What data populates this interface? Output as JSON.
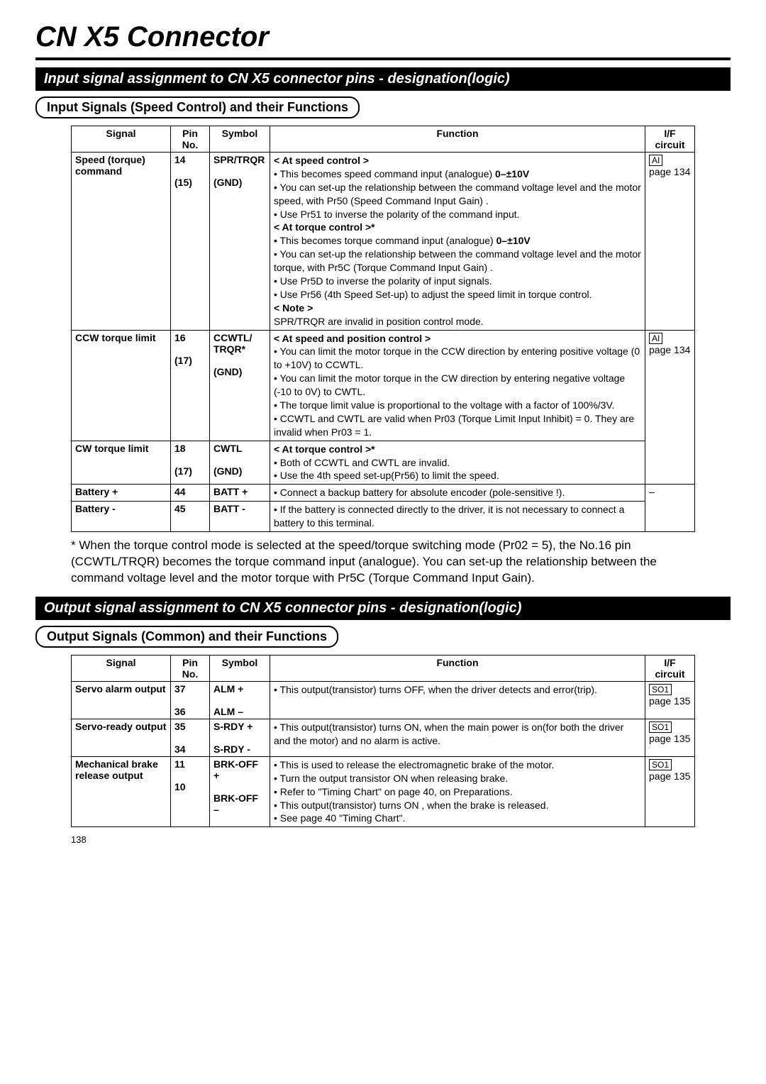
{
  "title": "CN X5 Connector",
  "section1": {
    "bar": "Input signal assignment to CN X5 connector pins - designation(logic)",
    "sub": "Input Signals (Speed Control) and their Functions",
    "headers": {
      "signal": "Signal",
      "pin": "Pin No.",
      "symbol": "Symbol",
      "func": "Function",
      "if": "I/F circuit"
    },
    "rows": [
      {
        "signal": "Speed (torque) command",
        "pins": [
          "14",
          "(15)"
        ],
        "symbols": [
          "SPR/TRQR",
          "(GND)"
        ],
        "func_html": "<b>&lt; At speed control &gt;</b><br>• This becomes speed command input (analogue) <b>0–±10V</b><br>• You can set-up the relationship between the command voltage level and the motor speed, with Pr50 (Speed Command Input Gain) .<br>• Use Pr51 to inverse the polarity of the command input.<br><b>&lt; At torque control &gt;*</b><br>• This becomes torque command input (analogue) <b>0–±10V</b><br>• You can set-up the relationship between the command voltage level and the motor torque, with Pr5C (Torque Command Input Gain) .<br>• Use Pr5D to inverse the polarity of input signals.<br>• Use Pr56 (4th Speed Set-up) to adjust the speed limit in torque control.<br><b>&lt; Note &gt;</b><br>SPR/TRQR are invalid in position control mode.",
        "if_box": "AI",
        "if_page": "page 134"
      },
      {
        "signal": "CCW torque limit",
        "pins": [
          "16",
          "(17)"
        ],
        "symbols": [
          "CCWTL/\nTRQR*",
          "(GND)"
        ],
        "func_html": "<b>&lt; At speed and position control &gt;</b><br>• You can limit the motor torque in the CCW direction by entering positive voltage (0 to +10V) to  CCWTL.<br>• You can limit the motor torque in the CW direction by entering negative voltage (-10 to 0V) to CWTL.<br>• The torque limit value is proportional to the voltage with a factor of 100%/3V.<br>• CCWTL and CWTL are valid when Pr03 (Torque Limit Input Inhibit) = 0. They are invalid when Pr03 = 1.",
        "if_box": "AI",
        "if_page": "page 134"
      },
      {
        "signal": "CW torque limit",
        "pins": [
          "18",
          "(17)"
        ],
        "symbols": [
          "CWTL",
          "(GND)"
        ],
        "func_html": "<b>&lt; At torque control &gt;*</b><br>• Both of CCWTL and CWTL are invalid.<br>• Use the 4th speed set-up(Pr56) to  limit the speed.",
        "if_box": "",
        "if_page": ""
      },
      {
        "signal": "Battery +",
        "pins": [
          "44"
        ],
        "symbols": [
          "BATT +"
        ],
        "func_html": "• Connect a backup battery for absolute encoder (pole-sensitive !).",
        "if_box": "",
        "if_page": "–"
      },
      {
        "signal": "Battery -",
        "pins": [
          "45"
        ],
        "symbols": [
          "BATT -"
        ],
        "func_html": "• If the battery is connected directly to the driver, it is not necessary to connect a battery to this terminal.",
        "if_box": "",
        "if_page": ""
      }
    ],
    "footnote": "*  When the torque control mode is selected at the speed/torque switching mode (Pr02 = 5),  the No.16 pin (CCWTL/TRQR) becomes  the torque command input (analogue). You can set-up the relationship between the  command voltage level and the motor torque with Pr5C (Torque Command Input Gain)."
  },
  "section2": {
    "bar": "Output signal assignment to CN X5 connector pins  - designation(logic)",
    "sub": "Output Signals (Common) and their Functions",
    "headers": {
      "signal": "Signal",
      "pin": "Pin No.",
      "symbol": "Symbol",
      "func": "Function",
      "if": "I/F circuit"
    },
    "rows": [
      {
        "signal": "Servo alarm output",
        "pins": [
          "37",
          "36"
        ],
        "symbols": [
          "ALM +",
          "ALM –"
        ],
        "func_html": "• This output(transistor) turns OFF, when the  driver detects and error(trip).",
        "if_box": "SO1",
        "if_page": "page 135"
      },
      {
        "signal": "Servo-ready output",
        "pins": [
          "35",
          "34"
        ],
        "symbols": [
          "S-RDY +",
          "S-RDY -"
        ],
        "func_html": "• This output(transistor) turns ON,  when the main power is on(for both the driver and the motor) and no alarm is active.",
        "if_box": "SO1",
        "if_page": "page 135"
      },
      {
        "signal": "Mechanical brake release output",
        "pins": [
          "11",
          "10"
        ],
        "symbols": [
          "BRK-OFF +",
          "BRK-OFF –"
        ],
        "func_html": "• This is used to release the electromagnetic brake of the motor.<br>• Turn the output transistor ON when releasing brake.<br>• Refer to \"Timing Chart\" on page 40, on Preparations.<br>• This output(transistor) turns ON , when  the brake  is released.<br>• See page 40 \"Timing Chart\".",
        "if_box": "SO1",
        "if_page": "page 135"
      }
    ]
  },
  "page_number": "138"
}
